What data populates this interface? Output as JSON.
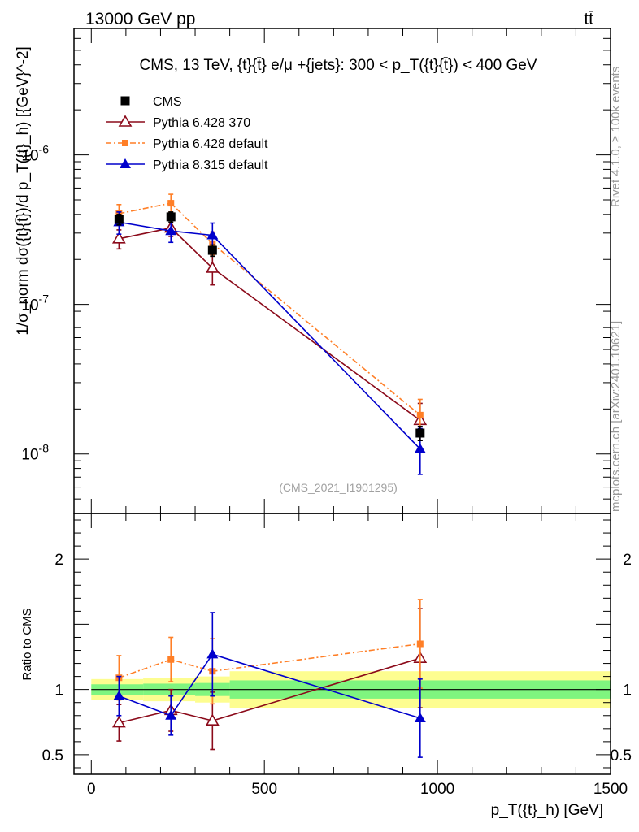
{
  "header": {
    "beam": "13000 GeV pp",
    "process": "tt̄"
  },
  "side_labels": {
    "rivet": "Rivet 4.1.0, ≥ 100k events",
    "mcplots": "mcplots.cern.ch [arXiv:2401.10621]"
  },
  "chart_data": [
    {
      "type": "scatter",
      "panel": "main",
      "title": "CMS, 13 TeV, {t}{t̄} e/μ +{jets}: 300 <  p_T({t}{t̄}) < 400 GeV",
      "analysis_tag": "(CMS_2021_I1901295)",
      "ylabel": "1/σ_norm dσ({t}{t̄})/d p_T({t}_h) [{GeV}^-2]",
      "yscale": "log",
      "ylim": [
        4e-09,
        7e-06
      ],
      "xlim": [
        -50,
        1500
      ],
      "y_tick_labels": [
        "10^-8",
        "10^-7",
        "10^-6"
      ],
      "legend_position": "top-left",
      "x": [
        80,
        230,
        350,
        950
      ],
      "series": [
        {
          "name": "CMS",
          "color": "#000000",
          "marker": "square",
          "line": "none",
          "values": [
            3.7e-07,
            3.85e-07,
            2.3e-07,
            1.38e-08
          ],
          "err_up": [
            3e-08,
            3e-08,
            2e-08,
            1.5e-09
          ],
          "err_down": [
            3e-08,
            3e-08,
            2e-08,
            1.5e-09
          ]
        },
        {
          "name": "Pythia 6.428 370",
          "color": "#8b0a1a",
          "marker": "triangle-open",
          "line": "solid",
          "values": [
            2.75e-07,
            3.25e-07,
            1.75e-07,
            1.68e-08
          ],
          "err_up": [
            4e-08,
            4e-08,
            4e-08,
            5e-09
          ],
          "err_down": [
            4e-08,
            4e-08,
            4e-08,
            4.5e-09
          ]
        },
        {
          "name": "Pythia 6.428 default",
          "color": "#ff7f27",
          "marker": "square-small",
          "line": "dashdot",
          "values": [
            4.05e-07,
            4.75e-07,
            2.55e-07,
            1.82e-08
          ],
          "err_up": [
            6e-08,
            7e-08,
            5e-08,
            5e-09
          ],
          "err_down": [
            5e-08,
            6e-08,
            4e-08,
            4e-09
          ]
        },
        {
          "name": "Pythia 8.315 default",
          "color": "#0000cc",
          "marker": "triangle",
          "line": "solid",
          "values": [
            3.55e-07,
            3.1e-07,
            2.9e-07,
            1.08e-08
          ],
          "err_up": [
            6e-08,
            6e-08,
            6e-08,
            4e-09
          ],
          "err_down": [
            6e-08,
            5e-08,
            5e-08,
            3.5e-09
          ]
        }
      ]
    },
    {
      "type": "scatter",
      "panel": "ratio",
      "ylabel": "Ratio to CMS",
      "xlabel": "p_T({t}_h) [GeV]",
      "ylim": [
        0.35,
        2.35
      ],
      "xlim": [
        -50,
        1500
      ],
      "y_ticks": [
        0.5,
        1,
        2
      ],
      "y_tick_labels": [
        "0.5",
        "1",
        "2"
      ],
      "x_ticks": [
        0,
        500,
        1000,
        1500
      ],
      "x_tick_labels": [
        "0",
        "500",
        "1000",
        "1500"
      ],
      "bands": {
        "bins": [
          [
            0,
            150
          ],
          [
            150,
            300
          ],
          [
            300,
            400
          ],
          [
            400,
            1500
          ]
        ],
        "green_half_width": [
          0.04,
          0.045,
          0.05,
          0.07
        ],
        "yellow_half_width": [
          0.08,
          0.09,
          0.1,
          0.14
        ],
        "green_color": "#7ff57f",
        "yellow_color": "#fdfd90"
      },
      "x": [
        80,
        230,
        350,
        950
      ],
      "series": [
        {
          "name": "Pythia 6.428 370",
          "color": "#8b0a1a",
          "marker": "triangle-open",
          "line": "solid",
          "values": [
            0.745,
            0.84,
            0.76,
            1.24
          ],
          "err": [
            0.14,
            0.16,
            0.22,
            0.38
          ]
        },
        {
          "name": "Pythia 6.428 default",
          "color": "#ff7f27",
          "marker": "square-small",
          "line": "dashdot",
          "values": [
            1.09,
            1.23,
            1.14,
            1.35
          ],
          "err": [
            0.17,
            0.17,
            0.25,
            0.34
          ]
        },
        {
          "name": "Pythia 8.315 default",
          "color": "#0000cc",
          "marker": "triangle",
          "line": "solid",
          "values": [
            0.95,
            0.8,
            1.27,
            0.78
          ],
          "err": [
            0.15,
            0.15,
            0.32,
            0.3
          ]
        }
      ]
    }
  ]
}
